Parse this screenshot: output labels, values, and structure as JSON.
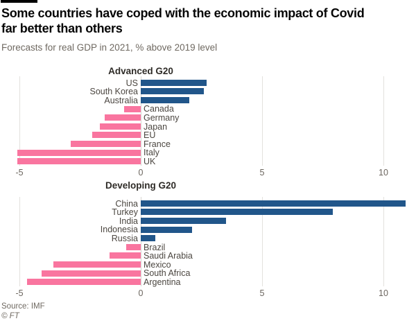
{
  "header": {
    "title": "Some countries have coped with the economic impact of Covid far better than others",
    "subtitle": "Forecasts for real GDP in 2021, % above 2019 level"
  },
  "footer": {
    "source": "Source: IMF",
    "credit": "© FT"
  },
  "colors": {
    "positive_bar": "#21568a",
    "negative_bar": "#f9759f",
    "gridline": "#e3e1dd",
    "zero_line": "#d8d5d1",
    "title_text": "#060606",
    "subtitle_text": "#6f6961",
    "category_label": "#4b4640",
    "tick_label": "#6b655e"
  },
  "axis": {
    "ticks": [
      -5,
      0,
      5,
      10
    ],
    "tick_labels": [
      "-5",
      "0",
      "5",
      "10"
    ],
    "min": -5,
    "max": 11
  },
  "chart_data": [
    {
      "type": "bar",
      "orientation": "horizontal",
      "title": "Advanced G20",
      "categories": [
        "US",
        "South Korea",
        "Australia",
        "Canada",
        "Germany",
        "Japan",
        "EU",
        "France",
        "Italy",
        "UK"
      ],
      "values": [
        2.7,
        2.6,
        2.0,
        -0.7,
        -1.5,
        -1.7,
        -2.0,
        -2.9,
        -5.1,
        -5.1
      ],
      "xlabel": "",
      "ylabel": "",
      "xlim": [
        -5,
        11
      ],
      "grid": "vertical",
      "legend": "none"
    },
    {
      "type": "bar",
      "orientation": "horizontal",
      "title": "Developing G20",
      "categories": [
        "China",
        "Turkey",
        "India",
        "Indonesia",
        "Russia",
        "Brazil",
        "Saudi Arabia",
        "Mexico",
        "South Africa",
        "Argentina"
      ],
      "values": [
        10.9,
        7.9,
        3.5,
        2.1,
        0.6,
        -0.6,
        -1.3,
        -3.6,
        -4.1,
        -4.7
      ],
      "xlabel": "",
      "ylabel": "",
      "xlim": [
        -5,
        11
      ],
      "grid": "vertical",
      "legend": "none"
    }
  ]
}
